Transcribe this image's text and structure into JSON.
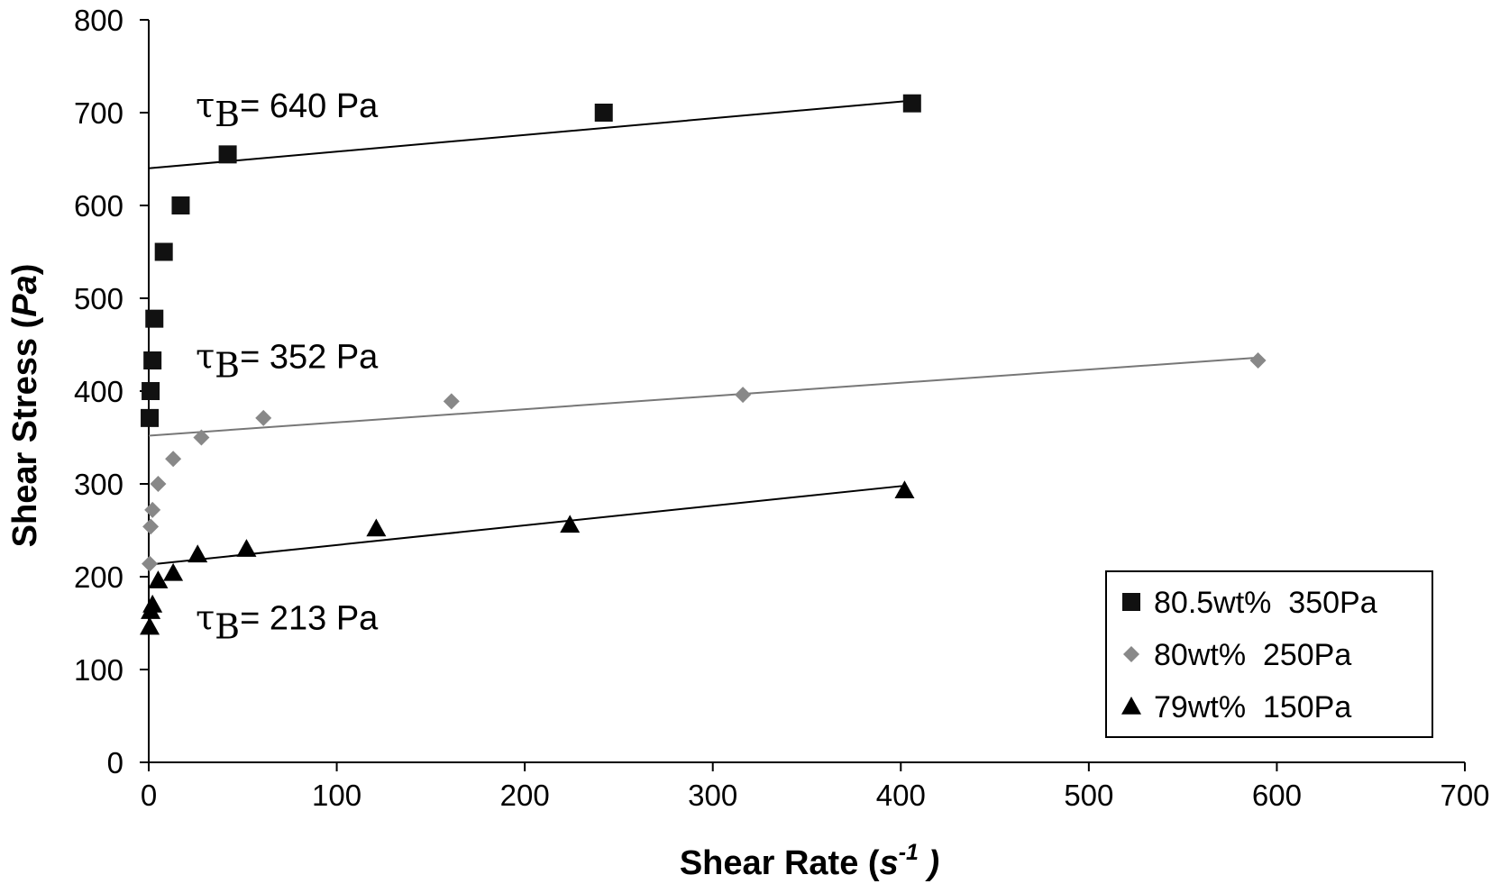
{
  "chart_data": {
    "type": "scatter",
    "xlabel": "Shear Rate",
    "xlabel_unit_base": "s",
    "xlabel_unit_exp": "-1",
    "ylabel": "Shear Stress",
    "ylabel_unit": "Pa",
    "xlim": [
      0,
      700
    ],
    "ylim": [
      0,
      800
    ],
    "xticks": [
      0,
      100,
      200,
      300,
      400,
      500,
      600,
      700
    ],
    "yticks": [
      0,
      100,
      200,
      300,
      400,
      500,
      600,
      700,
      800
    ],
    "grid": false,
    "legend_position": "bottom-right",
    "series": [
      {
        "name": "80.5wt%  350Pa",
        "marker": "square",
        "color": "#111111",
        "points": [
          [
            0.5,
            371
          ],
          [
            1,
            400
          ],
          [
            2,
            433
          ],
          [
            3,
            478
          ],
          [
            8,
            550
          ],
          [
            17,
            600
          ],
          [
            42,
            655
          ],
          [
            242,
            700
          ],
          [
            406,
            710
          ]
        ],
        "fit": {
          "x": [
            0,
            406
          ],
          "y": [
            640,
            713
          ],
          "color": "#000000"
        }
      },
      {
        "name": "80wt%  250Pa",
        "marker": "diamond",
        "color": "#888888",
        "points": [
          [
            0.5,
            214
          ],
          [
            1,
            254
          ],
          [
            2,
            272
          ],
          [
            5,
            300
          ],
          [
            13,
            327
          ],
          [
            28,
            350
          ],
          [
            61,
            371
          ],
          [
            161,
            389
          ],
          [
            316,
            396
          ],
          [
            590,
            433
          ]
        ],
        "fit": {
          "x": [
            0,
            590
          ],
          "y": [
            352,
            436
          ],
          "color": "#777777"
        }
      },
      {
        "name": "79wt%  150Pa",
        "marker": "triangle",
        "color": "#000000",
        "points": [
          [
            0.5,
            146
          ],
          [
            1,
            163
          ],
          [
            2,
            170
          ],
          [
            5,
            196
          ],
          [
            13,
            204
          ],
          [
            26,
            224
          ],
          [
            52,
            230
          ],
          [
            121,
            252
          ],
          [
            224,
            256
          ],
          [
            402,
            293
          ]
        ],
        "fit": {
          "x": [
            0,
            402
          ],
          "y": [
            213,
            298
          ],
          "color": "#000000"
        }
      }
    ],
    "annotations": [
      {
        "symbol": "τ",
        "subscript": "B",
        "text": "= 640 Pa",
        "x": 25,
        "y": 695
      },
      {
        "symbol": "τ",
        "subscript": "B",
        "text": "= 352 Pa",
        "x": 25,
        "y": 425
      },
      {
        "symbol": "τ",
        "subscript": "B",
        "text": "= 213 Pa",
        "x": 25,
        "y": 143
      }
    ]
  }
}
